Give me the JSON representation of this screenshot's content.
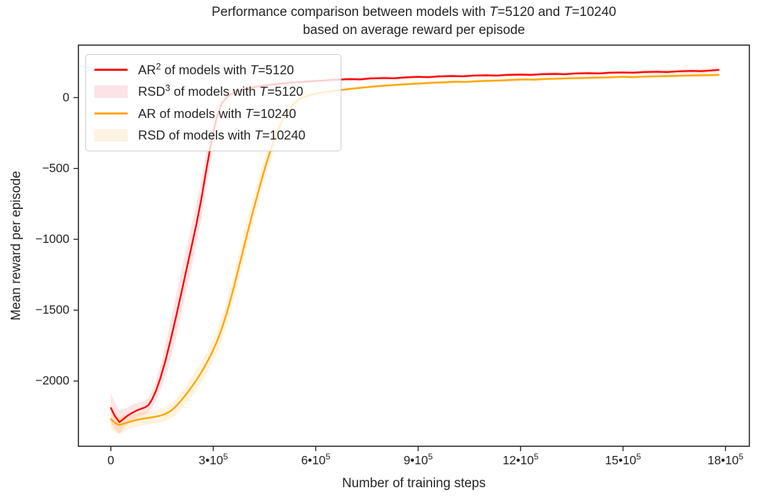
{
  "chart_data": {
    "type": "line",
    "title_html": "Performance comparison between models with <i>T</i>=5120 and <i>T</i>=10240",
    "subtitle_html": "based on average reward per episode",
    "xlabel": "Number of training steps",
    "ylabel": "Mean reward per episode",
    "x_unit": 100000,
    "xlim": [
      -0.95,
      18.7
    ],
    "ylim": [
      -2460,
      370
    ],
    "grid": false,
    "legend_position": "upper left",
    "x_ticks": [
      {
        "v": 0,
        "label_html": "0"
      },
      {
        "v": 3,
        "label_html": "3&#8226;10<sup>5</sup>"
      },
      {
        "v": 6,
        "label_html": "6&#8226;10<sup>5</sup>"
      },
      {
        "v": 9,
        "label_html": "9&#8226;10<sup>5</sup>"
      },
      {
        "v": 12,
        "label_html": "12&#8226;10<sup>5</sup>"
      },
      {
        "v": 15,
        "label_html": "15&#8226;10<sup>5</sup>"
      },
      {
        "v": 18,
        "label_html": "18&#8226;10<sup>5</sup>"
      }
    ],
    "y_ticks": [
      {
        "v": 0,
        "label_html": "0"
      },
      {
        "v": -500,
        "label_html": "&#8722;500"
      },
      {
        "v": -1000,
        "label_html": "&#8722;1000"
      },
      {
        "v": -1500,
        "label_html": "&#8722;1500"
      },
      {
        "v": -2000,
        "label_html": "&#8722;2000"
      }
    ],
    "colors": {
      "ar_5120_line": "#ff0000",
      "rsd_5120_band": "rgba(255,0,0,0.10)",
      "ar_10240_line": "#ffa500",
      "rsd_10240_band": "rgba(255,165,0,0.13)",
      "legend_patch_5120": "#fbe3e8",
      "legend_patch_10240": "#fdf3e1",
      "spine": "#262626",
      "text": "#262626"
    },
    "legend": [
      {
        "type": "line",
        "color": "#ff0000",
        "label_html": "AR<sup>2</sup> of models with <i>T</i>=5120"
      },
      {
        "type": "patch",
        "color": "#fbe3e8",
        "label_html": "RSD<sup>3</sup> of models with <i>T</i>=5120"
      },
      {
        "type": "line",
        "color": "#ffa500",
        "label_html": "AR of models with <i>T</i>=10240"
      },
      {
        "type": "patch",
        "color": "#fdf3e1",
        "label_html": "RSD of models with <i>T</i>=10240"
      }
    ],
    "series": [
      {
        "name": "AR2 of models with T=5120",
        "color": "#ff0000",
        "band_color": "rgba(255,0,0,0.10)",
        "points_format": "[x in 10^5 steps, mean reward, band half-width]",
        "points": [
          [
            0,
            -2190,
            105
          ],
          [
            0.12,
            -2248,
            95
          ],
          [
            0.25,
            -2290,
            85
          ],
          [
            0.38,
            -2265,
            65
          ],
          [
            0.5,
            -2242,
            58
          ],
          [
            0.62,
            -2225,
            55
          ],
          [
            0.75,
            -2208,
            52
          ],
          [
            0.88,
            -2196,
            50
          ],
          [
            1.0,
            -2186,
            50
          ],
          [
            1.1,
            -2170,
            52
          ],
          [
            1.2,
            -2133,
            58
          ],
          [
            1.32,
            -2070,
            70
          ],
          [
            1.45,
            -1980,
            90
          ],
          [
            1.6,
            -1855,
            115
          ],
          [
            1.75,
            -1710,
            135
          ],
          [
            1.9,
            -1555,
            150
          ],
          [
            2.05,
            -1395,
            155
          ],
          [
            2.2,
            -1230,
            155
          ],
          [
            2.35,
            -1065,
            152
          ],
          [
            2.5,
            -900,
            148
          ],
          [
            2.65,
            -715,
            140
          ],
          [
            2.8,
            -505,
            125
          ],
          [
            2.95,
            -305,
            100
          ],
          [
            3.1,
            -140,
            75
          ],
          [
            3.25,
            -40,
            50
          ],
          [
            3.45,
            15,
            32
          ],
          [
            3.7,
            45,
            22
          ],
          [
            4.0,
            64,
            17
          ],
          [
            4.3,
            78,
            15
          ],
          [
            4.6,
            88,
            14
          ],
          [
            5.0,
            99,
            13
          ],
          [
            5.4,
            107,
            12
          ],
          [
            5.8,
            114,
            12
          ],
          [
            6.2,
            120,
            12
          ],
          [
            6.6,
            126,
            12
          ],
          [
            7.0,
            130,
            12
          ],
          [
            7.3,
            128,
            12
          ],
          [
            7.6,
            135,
            12
          ],
          [
            8.0,
            138,
            13
          ],
          [
            8.3,
            136,
            12
          ],
          [
            8.6,
            142,
            12
          ],
          [
            9.0,
            146,
            12
          ],
          [
            9.3,
            144,
            12
          ],
          [
            9.6,
            149,
            13
          ],
          [
            10.0,
            152,
            13
          ],
          [
            10.3,
            150,
            12
          ],
          [
            10.6,
            155,
            13
          ],
          [
            11.0,
            157,
            14
          ],
          [
            11.3,
            155,
            13
          ],
          [
            11.6,
            160,
            13
          ],
          [
            12.0,
            162,
            13
          ],
          [
            12.3,
            160,
            13
          ],
          [
            12.6,
            165,
            14
          ],
          [
            13.0,
            167,
            13
          ],
          [
            13.3,
            165,
            13
          ],
          [
            13.6,
            170,
            14
          ],
          [
            14.0,
            172,
            14
          ],
          [
            14.3,
            170,
            14
          ],
          [
            14.6,
            175,
            15
          ],
          [
            15.0,
            177,
            15
          ],
          [
            15.3,
            175,
            14
          ],
          [
            15.6,
            180,
            15
          ],
          [
            16.0,
            182,
            16
          ],
          [
            16.3,
            180,
            15
          ],
          [
            16.6,
            185,
            16
          ],
          [
            17.0,
            188,
            17
          ],
          [
            17.3,
            186,
            16
          ],
          [
            17.6,
            192,
            17
          ],
          [
            17.8,
            195,
            18
          ]
        ]
      },
      {
        "name": "AR of models with T=10240",
        "color": "#ffa500",
        "band_color": "rgba(255,165,0,0.13)",
        "points_format": "[x in 10^5 steps, mean reward, band half-width]",
        "points": [
          [
            0,
            -2268,
            70
          ],
          [
            0.12,
            -2296,
            65
          ],
          [
            0.25,
            -2310,
            60
          ],
          [
            0.4,
            -2299,
            55
          ],
          [
            0.55,
            -2288,
            50
          ],
          [
            0.7,
            -2278,
            48
          ],
          [
            0.85,
            -2270,
            47
          ],
          [
            1.0,
            -2263,
            46
          ],
          [
            1.15,
            -2258,
            46
          ],
          [
            1.3,
            -2252,
            47
          ],
          [
            1.45,
            -2244,
            48
          ],
          [
            1.6,
            -2232,
            50
          ],
          [
            1.75,
            -2212,
            53
          ],
          [
            1.9,
            -2180,
            57
          ],
          [
            2.05,
            -2140,
            61
          ],
          [
            2.2,
            -2096,
            64
          ],
          [
            2.35,
            -2047,
            67
          ],
          [
            2.5,
            -1995,
            69
          ],
          [
            2.65,
            -1938,
            71
          ],
          [
            2.8,
            -1876,
            73
          ],
          [
            2.95,
            -1806,
            75
          ],
          [
            3.1,
            -1725,
            78
          ],
          [
            3.25,
            -1630,
            82
          ],
          [
            3.4,
            -1515,
            86
          ],
          [
            3.55,
            -1385,
            90
          ],
          [
            3.7,
            -1245,
            93
          ],
          [
            3.85,
            -1100,
            95
          ],
          [
            4.0,
            -955,
            95
          ],
          [
            4.15,
            -815,
            92
          ],
          [
            4.3,
            -680,
            88
          ],
          [
            4.45,
            -550,
            84
          ],
          [
            4.6,
            -430,
            78
          ],
          [
            4.75,
            -320,
            70
          ],
          [
            4.9,
            -225,
            60
          ],
          [
            5.05,
            -148,
            50
          ],
          [
            5.2,
            -88,
            40
          ],
          [
            5.35,
            -45,
            30
          ],
          [
            5.5,
            -15,
            24
          ],
          [
            5.7,
            8,
            19
          ],
          [
            5.9,
            22,
            16
          ],
          [
            6.2,
            36,
            14
          ],
          [
            6.5,
            47,
            13
          ],
          [
            7.0,
            61,
            12
          ],
          [
            7.4,
            71,
            12
          ],
          [
            7.8,
            80,
            12
          ],
          [
            8.2,
            87,
            12
          ],
          [
            8.6,
            93,
            12
          ],
          [
            9.0,
            99,
            12
          ],
          [
            9.4,
            104,
            12
          ],
          [
            9.8,
            108,
            12
          ],
          [
            10.1,
            112,
            12
          ],
          [
            10.4,
            110,
            12
          ],
          [
            10.7,
            115,
            12
          ],
          [
            11.0,
            118,
            12
          ],
          [
            11.4,
            121,
            12
          ],
          [
            11.8,
            125,
            12
          ],
          [
            12.1,
            128,
            12
          ],
          [
            12.4,
            126,
            12
          ],
          [
            12.7,
            131,
            12
          ],
          [
            13.0,
            133,
            13
          ],
          [
            13.4,
            136,
            13
          ],
          [
            13.8,
            138,
            13
          ],
          [
            14.2,
            141,
            13
          ],
          [
            14.6,
            143,
            13
          ],
          [
            15.0,
            146,
            13
          ],
          [
            15.3,
            144,
            13
          ],
          [
            15.6,
            148,
            14
          ],
          [
            16.0,
            150,
            14
          ],
          [
            16.4,
            152,
            14
          ],
          [
            16.8,
            155,
            14
          ],
          [
            17.2,
            157,
            14
          ],
          [
            17.5,
            158,
            15
          ],
          [
            17.8,
            160,
            15
          ]
        ]
      }
    ]
  }
}
